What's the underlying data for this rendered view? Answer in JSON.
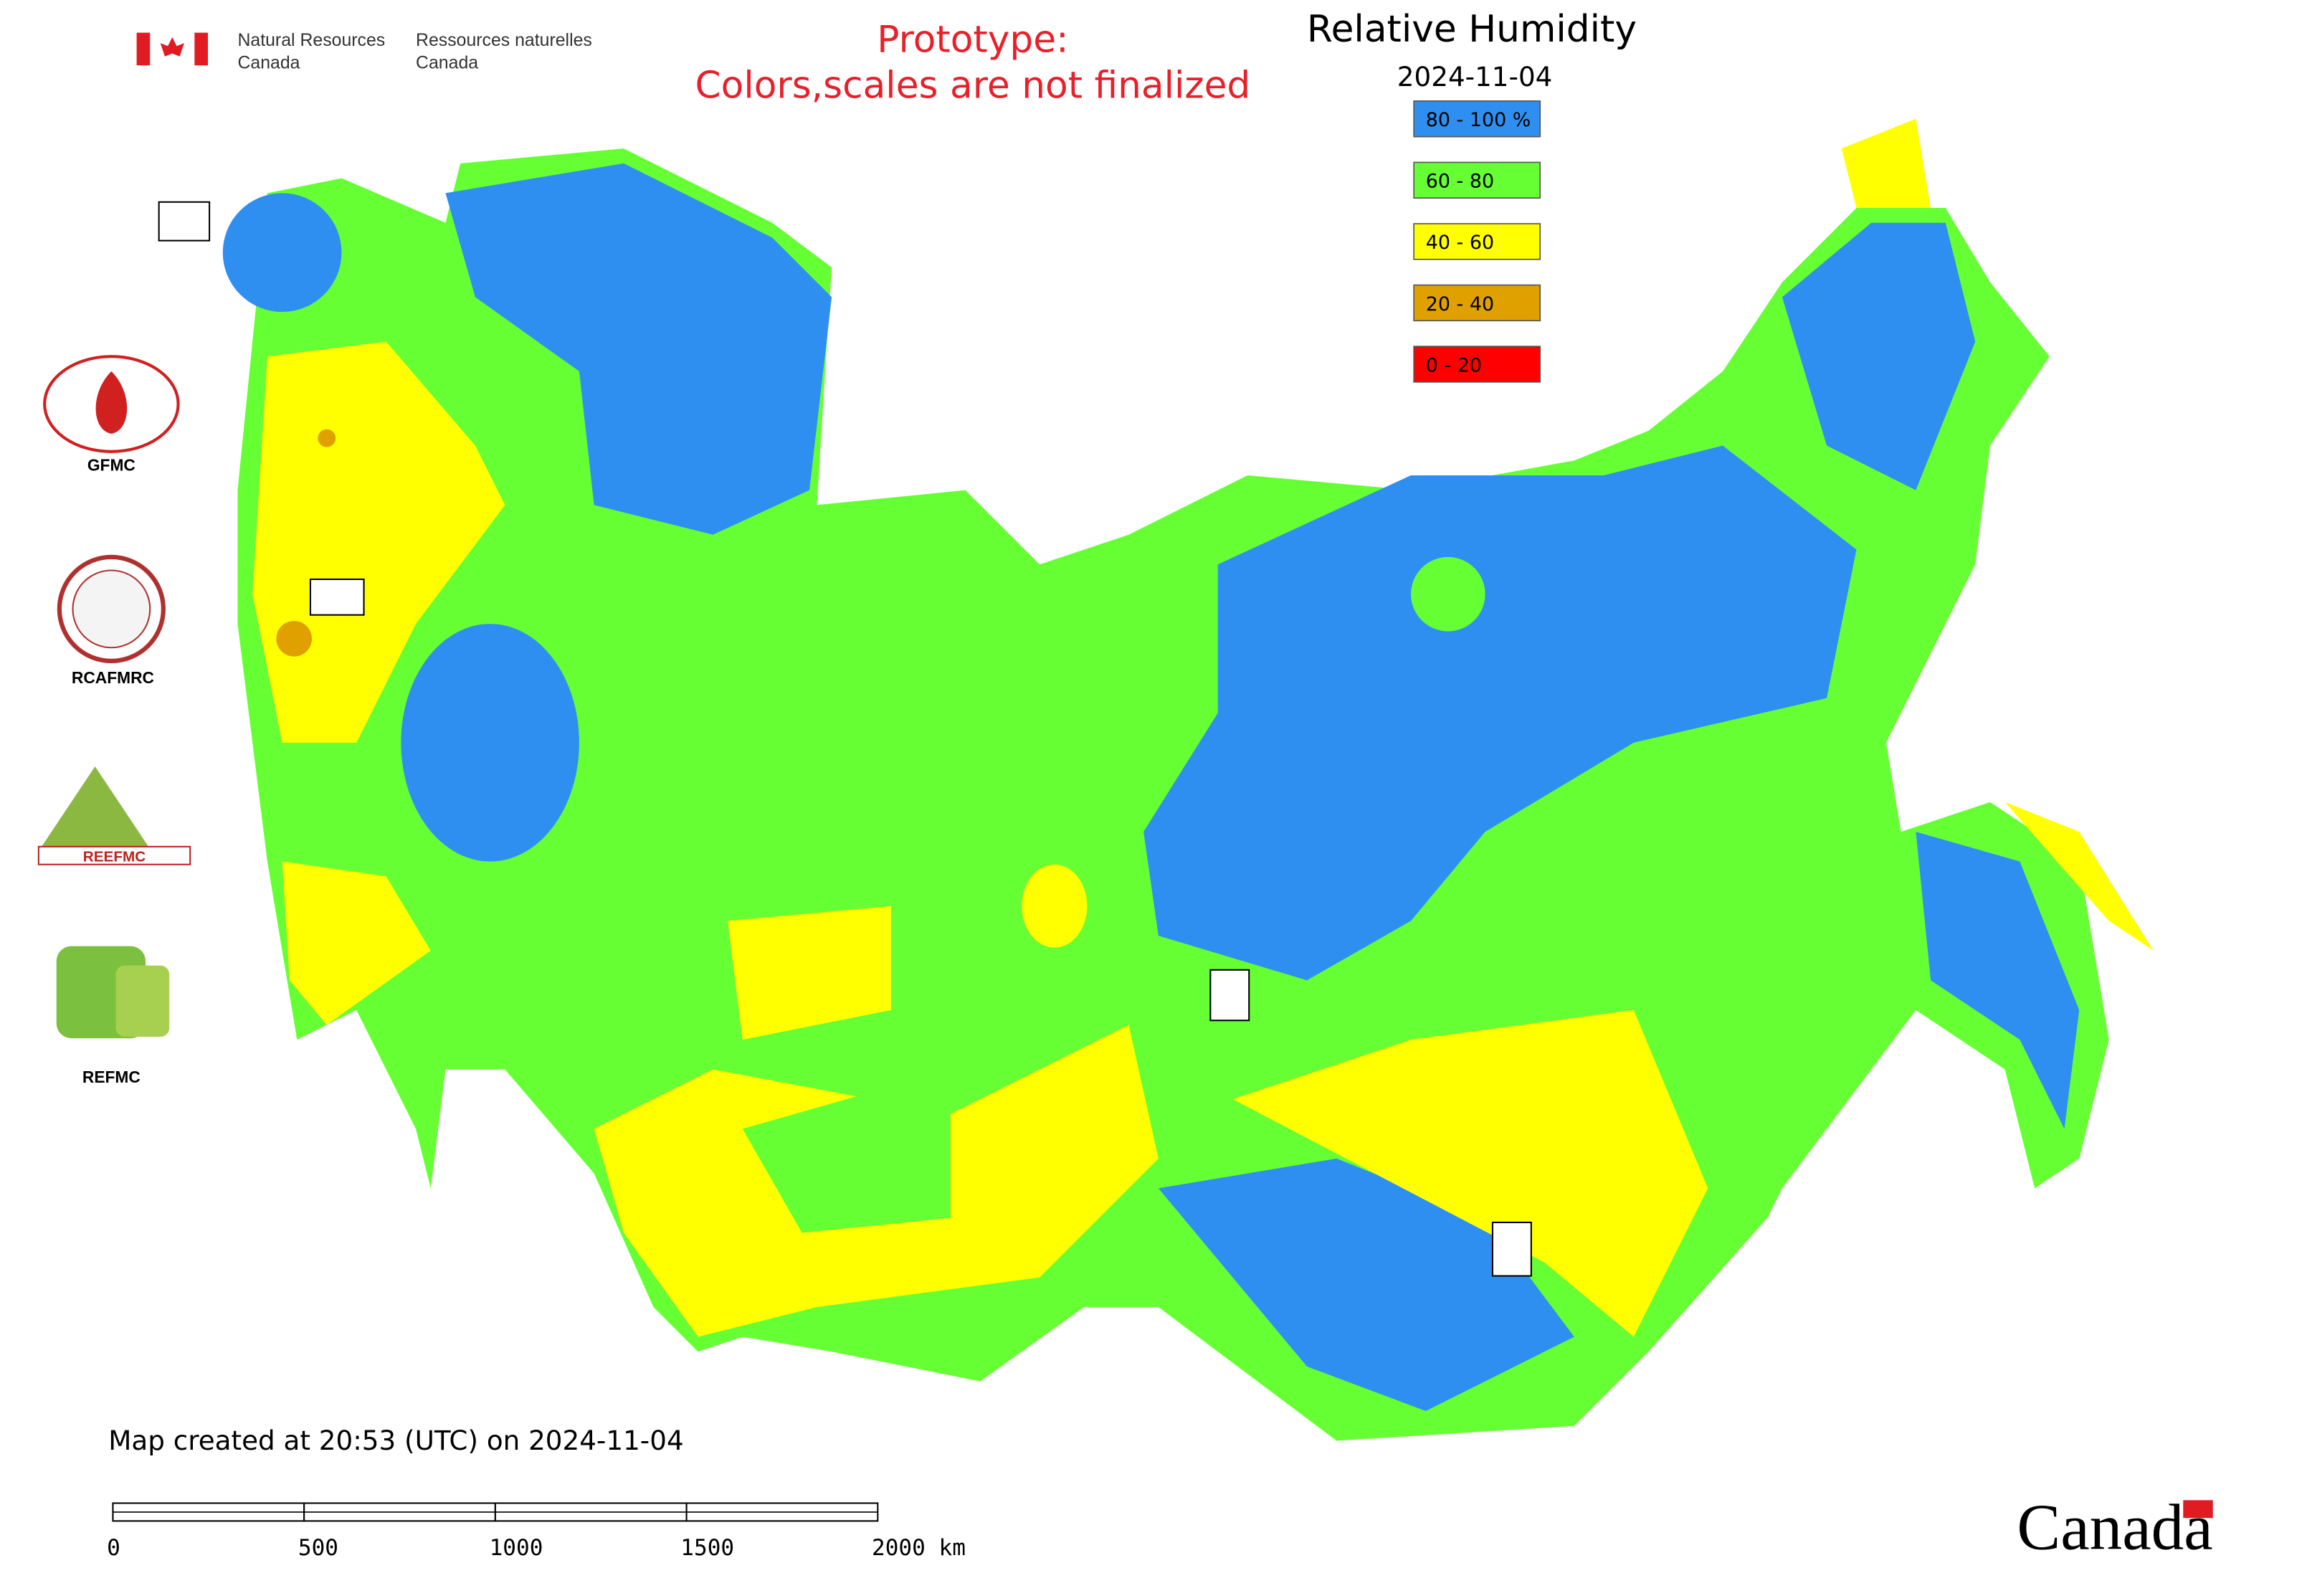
{
  "header": {
    "org_en_1": "Natural Resources",
    "org_en_2": "Canada",
    "org_fr_1": "Ressources naturelles",
    "org_fr_2": "Canada"
  },
  "notice": [
    "Prototype:",
    "Colors,scales are not finalized"
  ],
  "title": "Relative Humidity",
  "date": "2024-11-04",
  "legend": [
    {
      "label": "80 - 100 %",
      "color": "#2f8ff0"
    },
    {
      "label": "60 - 80",
      "color": "#66ff33"
    },
    {
      "label": "40 - 60",
      "color": "#ffff00"
    },
    {
      "label": "20 - 40",
      "color": "#e0a000"
    },
    {
      "label": "0 - 20",
      "color": "#ff0000"
    }
  ],
  "logos": [
    "GFMC",
    "RCAFMRC",
    "REEFMC",
    "REFMC"
  ],
  "footer": {
    "created": "Map created at 20:53 (UTC) on 2024-11-04",
    "scale_labels": [
      "0",
      "500",
      "1000",
      "1500",
      "2000 km"
    ],
    "wordmark": "Canada"
  }
}
